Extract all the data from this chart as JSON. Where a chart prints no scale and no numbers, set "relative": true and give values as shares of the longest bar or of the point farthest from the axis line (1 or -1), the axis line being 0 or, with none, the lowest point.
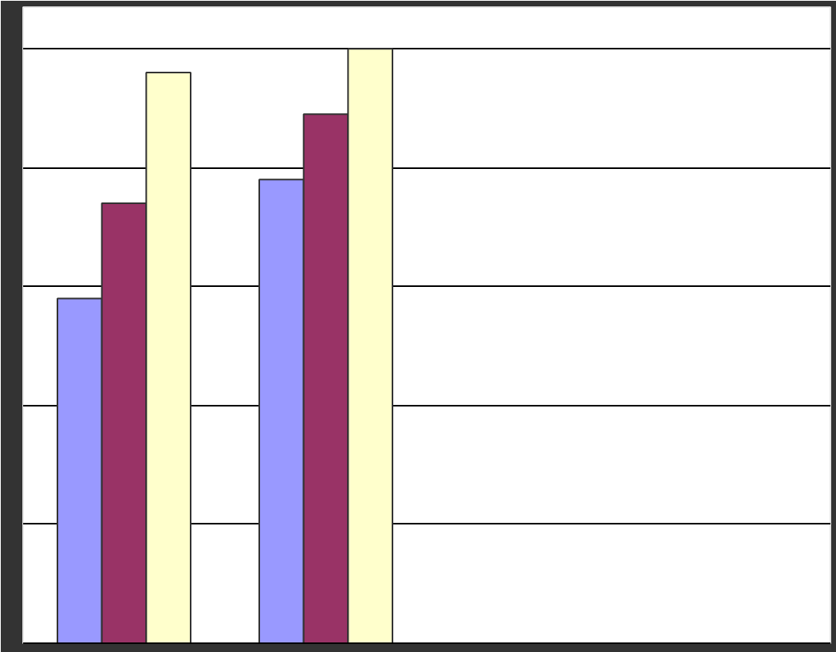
{
  "chart_data": {
    "type": "bar",
    "relative": true,
    "categories": [
      null,
      null
    ],
    "series": [
      {
        "color": "#9999ff",
        "values": [
          0.58,
          0.78
        ]
      },
      {
        "color": "#993366",
        "values": [
          0.74,
          0.89
        ]
      },
      {
        "color": "#ffffcc",
        "values": [
          0.96,
          1.0
        ]
      }
    ],
    "grid": "y"
  }
}
